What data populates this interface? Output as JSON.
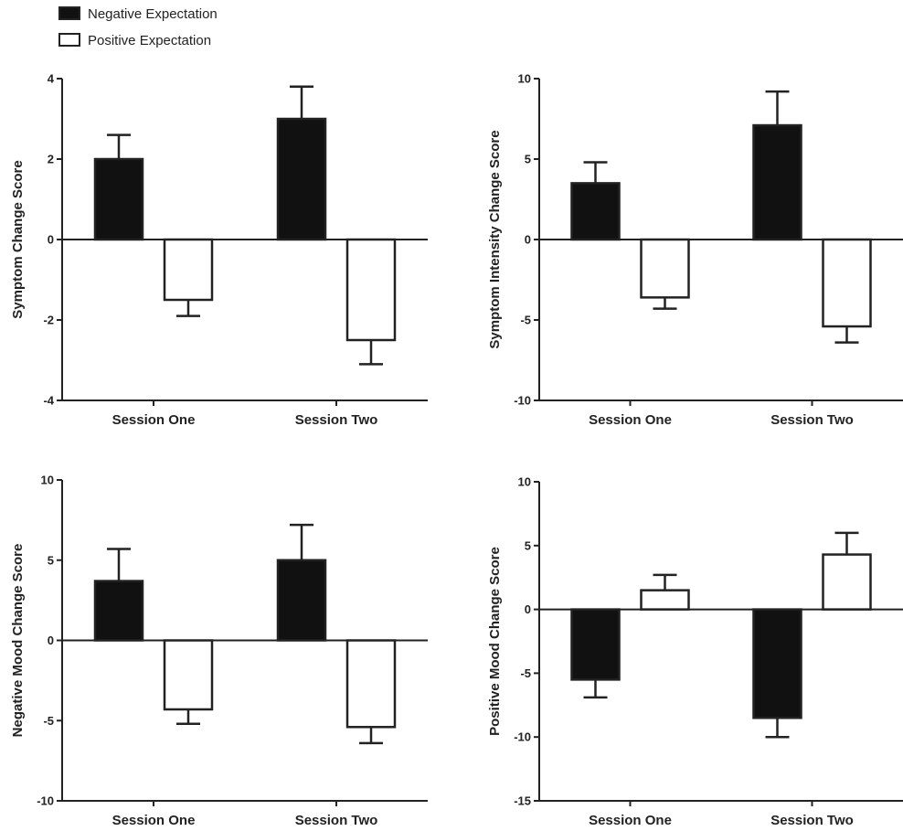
{
  "legend": {
    "position": "top-left",
    "entries": [
      {
        "label": "Negative Expectation",
        "fill": "#111111"
      },
      {
        "label": "Positive Expectation",
        "fill": "#ffffff"
      }
    ]
  },
  "colors": {
    "negative": "#111111",
    "positive": "#ffffff",
    "axis": "#222222"
  },
  "chart_data": [
    {
      "type": "bar",
      "panel": "top-left",
      "categories": [
        "Session One",
        "Session Two"
      ],
      "ylabel": "Symptom Change Score",
      "xlabel": "",
      "ylim": [
        -4,
        4
      ],
      "yticks": [
        4,
        2,
        0,
        -2,
        -4
      ],
      "grid": false,
      "series": [
        {
          "name": "Negative Expectation",
          "values": [
            2.0,
            3.0
          ],
          "errors": [
            0.6,
            0.8
          ]
        },
        {
          "name": "Positive Expectation",
          "values": [
            -1.5,
            -2.5
          ],
          "errors": [
            0.4,
            0.6
          ]
        }
      ]
    },
    {
      "type": "bar",
      "panel": "top-right",
      "categories": [
        "Session One",
        "Session Two"
      ],
      "ylabel": "Symptom Intensity Change Score",
      "xlabel": "",
      "ylim": [
        -10,
        10
      ],
      "yticks": [
        10,
        5,
        0,
        -5,
        -10
      ],
      "grid": false,
      "series": [
        {
          "name": "Negative Expectation",
          "values": [
            3.5,
            7.1
          ],
          "errors": [
            1.3,
            2.1
          ]
        },
        {
          "name": "Positive Expectation",
          "values": [
            -3.6,
            -5.4
          ],
          "errors": [
            0.7,
            1.0
          ]
        }
      ]
    },
    {
      "type": "bar",
      "panel": "bottom-left",
      "categories": [
        "Session One",
        "Session Two"
      ],
      "ylabel": "Negative Mood Change Score",
      "xlabel": "",
      "ylim": [
        -10,
        10
      ],
      "yticks": [
        10,
        5,
        0,
        -5,
        -10
      ],
      "grid": false,
      "series": [
        {
          "name": "Negative Expectation",
          "values": [
            3.7,
            5.0
          ],
          "errors": [
            2.0,
            2.2
          ]
        },
        {
          "name": "Positive Expectation",
          "values": [
            -4.3,
            -5.4
          ],
          "errors": [
            0.9,
            1.0
          ]
        }
      ]
    },
    {
      "type": "bar",
      "panel": "bottom-right",
      "categories": [
        "Session One",
        "Session Two"
      ],
      "ylabel": "Positive Mood Change Score",
      "xlabel": "",
      "ylim": [
        -15,
        10
      ],
      "yticks": [
        10,
        5,
        0,
        -5,
        -10,
        -15
      ],
      "grid": false,
      "series": [
        {
          "name": "Negative Expectation",
          "values": [
            -5.5,
            -8.5
          ],
          "errors": [
            1.4,
            1.5
          ]
        },
        {
          "name": "Positive Expectation",
          "values": [
            1.5,
            4.3
          ],
          "errors": [
            1.2,
            1.7
          ]
        }
      ]
    }
  ]
}
